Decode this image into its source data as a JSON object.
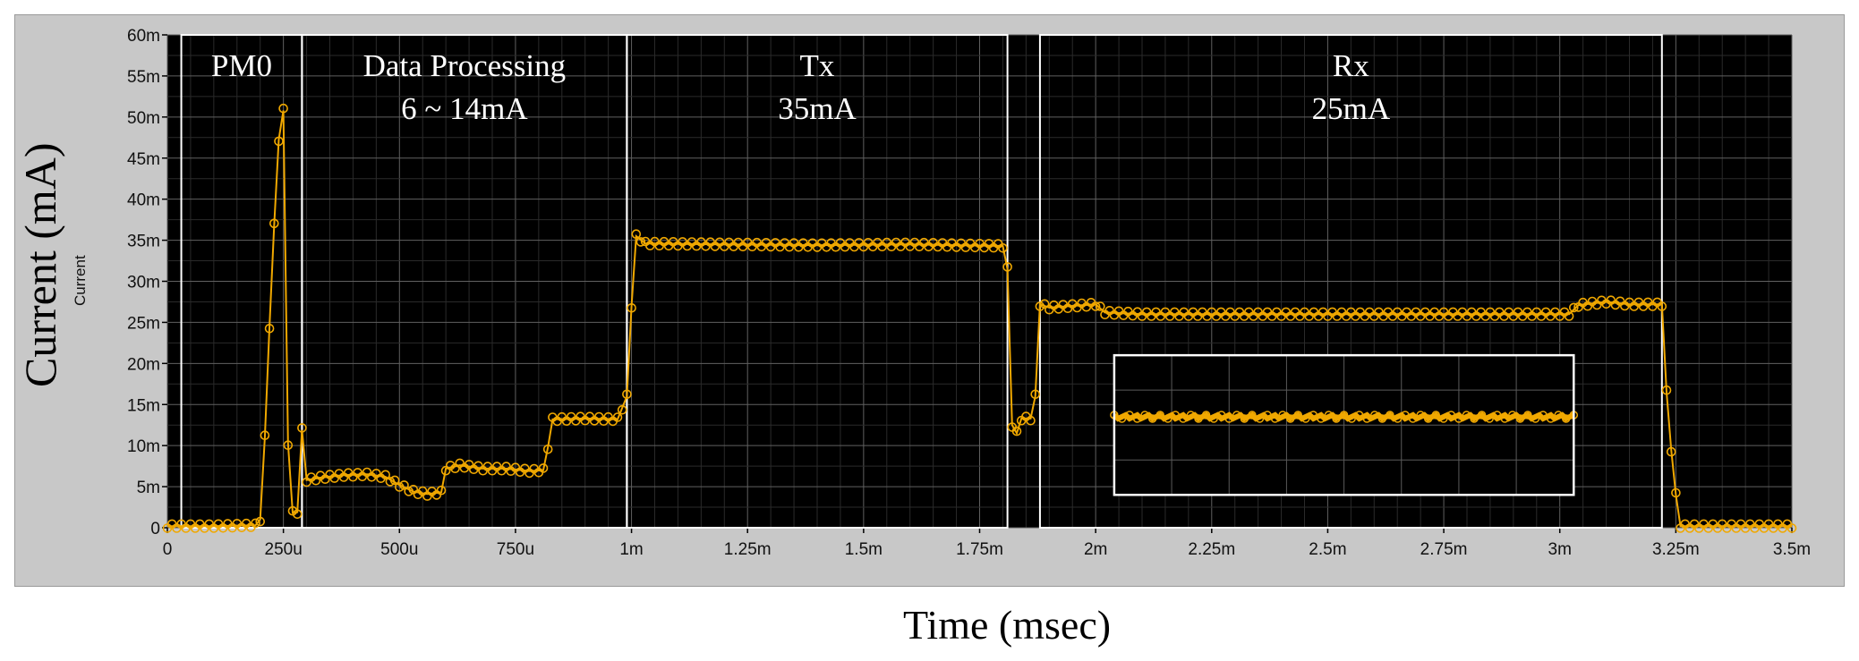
{
  "chart_data": {
    "type": "line",
    "ylabel": "Current (mA)",
    "ylabel_inner": "Current",
    "xlabel": "Time (msec)",
    "xlim": [
      0,
      3.5
    ],
    "ylim": [
      0,
      60
    ],
    "x_ticks": [
      {
        "v": 0,
        "label": "0"
      },
      {
        "v": 0.25,
        "label": "250u"
      },
      {
        "v": 0.5,
        "label": "500u"
      },
      {
        "v": 0.75,
        "label": "750u"
      },
      {
        "v": 1.0,
        "label": "1m"
      },
      {
        "v": 1.25,
        "label": "1.25m"
      },
      {
        "v": 1.5,
        "label": "1.5m"
      },
      {
        "v": 1.75,
        "label": "1.75m"
      },
      {
        "v": 2.0,
        "label": "2m"
      },
      {
        "v": 2.25,
        "label": "2.25m"
      },
      {
        "v": 2.5,
        "label": "2.5m"
      },
      {
        "v": 2.75,
        "label": "2.75m"
      },
      {
        "v": 3.0,
        "label": "3m"
      },
      {
        "v": 3.25,
        "label": "3.25m"
      },
      {
        "v": 3.5,
        "label": "3.5m"
      }
    ],
    "y_ticks": [
      {
        "v": 0,
        "label": "0"
      },
      {
        "v": 5,
        "label": "5m"
      },
      {
        "v": 10,
        "label": "10m"
      },
      {
        "v": 15,
        "label": "15m"
      },
      {
        "v": 20,
        "label": "20m"
      },
      {
        "v": 25,
        "label": "25m"
      },
      {
        "v": 30,
        "label": "30m"
      },
      {
        "v": 35,
        "label": "35m"
      },
      {
        "v": 40,
        "label": "40m"
      },
      {
        "v": 45,
        "label": "45m"
      },
      {
        "v": 50,
        "label": "50m"
      },
      {
        "v": 55,
        "label": "55m"
      },
      {
        "v": 60,
        "label": "60m"
      }
    ],
    "grid": true,
    "series": [
      {
        "color": "#f0a800",
        "points": [
          [
            0.0,
            0.2
          ],
          [
            0.1,
            0.2
          ],
          [
            0.19,
            0.3
          ],
          [
            0.2,
            1.0
          ],
          [
            0.21,
            11.0
          ],
          [
            0.22,
            24.5
          ],
          [
            0.23,
            36.8
          ],
          [
            0.24,
            47.3
          ],
          [
            0.25,
            50.8
          ],
          [
            0.26,
            10.3
          ],
          [
            0.27,
            1.8
          ],
          [
            0.28,
            1.9
          ],
          [
            0.29,
            11.9
          ],
          [
            0.3,
            5.8
          ],
          [
            0.33,
            6.1
          ],
          [
            0.38,
            6.4
          ],
          [
            0.43,
            6.5
          ],
          [
            0.47,
            6.2
          ],
          [
            0.5,
            5.2
          ],
          [
            0.53,
            4.4
          ],
          [
            0.56,
            4.1
          ],
          [
            0.59,
            4.3
          ],
          [
            0.6,
            7.2
          ],
          [
            0.63,
            7.6
          ],
          [
            0.68,
            7.2
          ],
          [
            0.73,
            7.2
          ],
          [
            0.78,
            6.9
          ],
          [
            0.81,
            7.0
          ],
          [
            0.82,
            9.8
          ],
          [
            0.83,
            13.2
          ],
          [
            0.9,
            13.3
          ],
          [
            0.97,
            13.2
          ],
          [
            0.99,
            16.0
          ],
          [
            1.0,
            27.0
          ],
          [
            1.01,
            35.5
          ],
          [
            1.03,
            34.6
          ],
          [
            1.2,
            34.5
          ],
          [
            1.4,
            34.4
          ],
          [
            1.6,
            34.5
          ],
          [
            1.8,
            34.3
          ],
          [
            1.81,
            31.5
          ],
          [
            1.82,
            12.5
          ],
          [
            1.83,
            11.5
          ],
          [
            1.84,
            13.3
          ],
          [
            1.86,
            13.3
          ],
          [
            1.87,
            16.0
          ],
          [
            1.88,
            27.2
          ],
          [
            1.9,
            26.8
          ],
          [
            1.95,
            27.0
          ],
          [
            2.0,
            27.2
          ],
          [
            2.02,
            26.2
          ],
          [
            2.1,
            26.0
          ],
          [
            2.4,
            26.0
          ],
          [
            2.7,
            26.0
          ],
          [
            2.9,
            26.0
          ],
          [
            3.02,
            26.0
          ],
          [
            3.04,
            27.1
          ],
          [
            3.1,
            27.5
          ],
          [
            3.15,
            27.2
          ],
          [
            3.22,
            27.2
          ],
          [
            3.23,
            16.5
          ],
          [
            3.24,
            9.5
          ],
          [
            3.25,
            4.0
          ],
          [
            3.26,
            0.2
          ],
          [
            3.5,
            0.2
          ]
        ]
      }
    ],
    "annotations": [
      {
        "x0": 0.03,
        "x1": 0.29,
        "y0": 0,
        "y1": 60,
        "lines": [
          "PM0"
        ]
      },
      {
        "x0": 0.29,
        "x1": 0.99,
        "y0": 0,
        "y1": 60,
        "lines": [
          "Data Processing",
          "6 ~ 14mA"
        ]
      },
      {
        "x0": 0.99,
        "x1": 1.81,
        "y0": 0,
        "y1": 60,
        "lines": [
          "Tx",
          "35mA"
        ]
      },
      {
        "x0": 1.88,
        "x1": 3.22,
        "y0": 0,
        "y1": 60,
        "lines": [
          "Rx",
          "25mA"
        ]
      }
    ],
    "inset": {
      "x0": 2.04,
      "x1": 3.03,
      "y0": 4.0,
      "y1": 21.0,
      "level": 13.5
    }
  },
  "colors": {
    "frame": "#c8c8c8",
    "plot_bg": "#000000",
    "grid_major": "#606060",
    "grid_minor": "#2a2a2a",
    "trace": "#f0a800",
    "annotation_box": "#ffffff"
  }
}
